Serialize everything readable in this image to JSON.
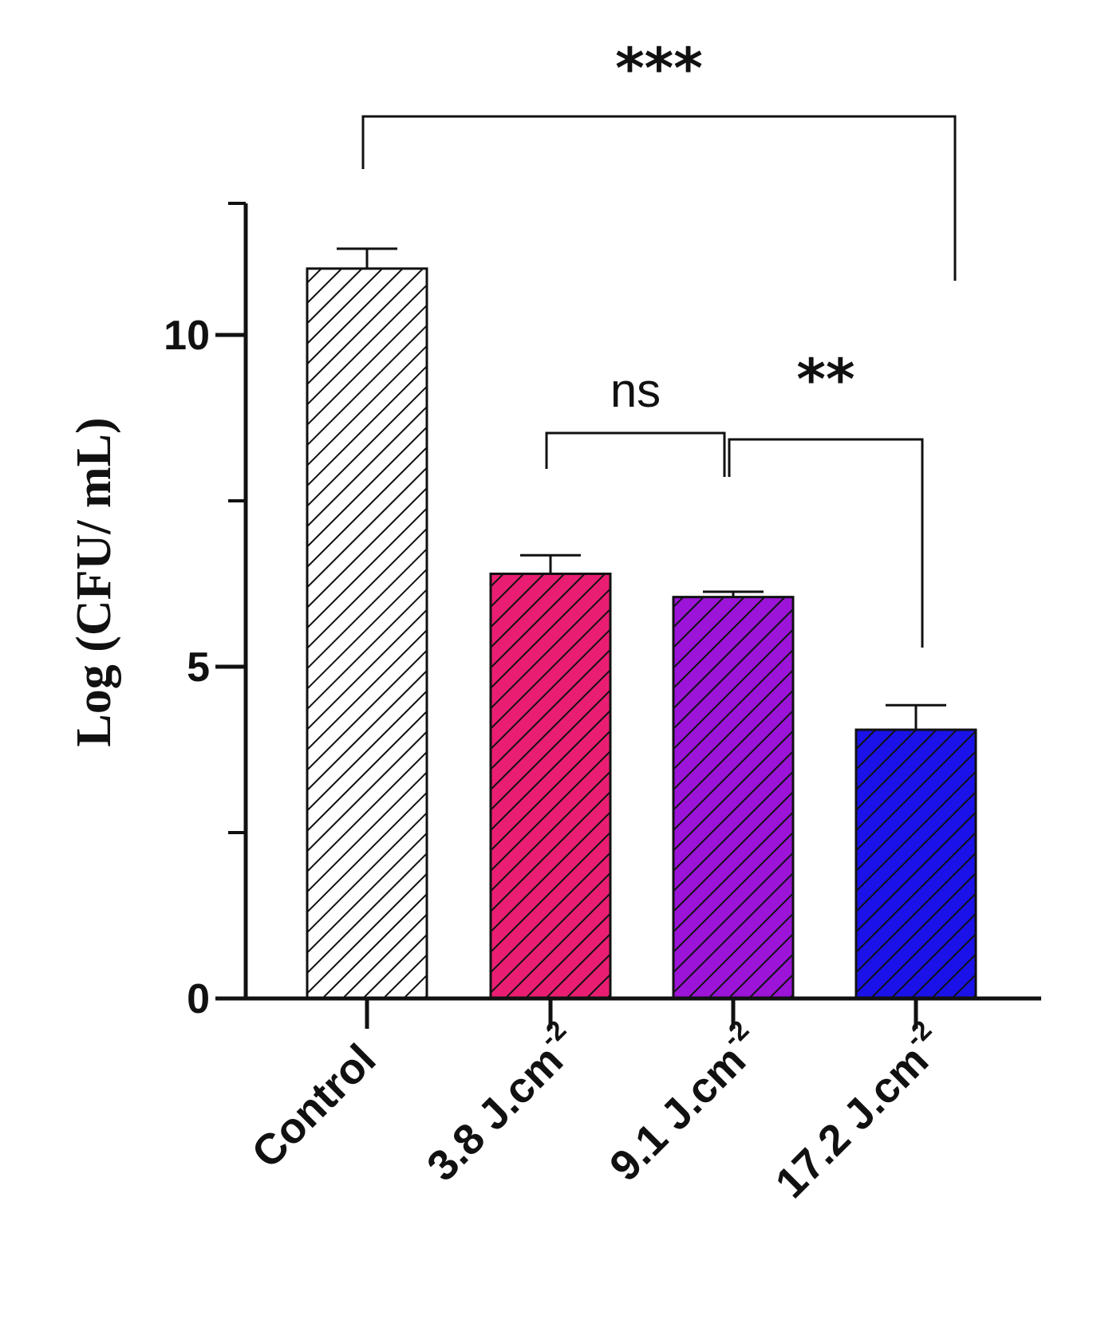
{
  "chart_data": {
    "type": "bar",
    "categories": [
      "Control",
      "3.8 J.cm",
      "9.1 J.cm",
      "17.2 J.cm"
    ],
    "category_superscripts": [
      "",
      "-2",
      "-2",
      "-2"
    ],
    "values": [
      11.0,
      6.4,
      6.05,
      4.05
    ],
    "errors": [
      0.3,
      0.28,
      0.08,
      0.37
    ],
    "colors": [
      "#ffffff",
      "#e91e72",
      "#9b14d8",
      "#1a12e8"
    ],
    "ylabel": "Log (CFU/ mL)",
    "xlabel": "",
    "title": "",
    "ylim": [
      0,
      12
    ],
    "yticks": [
      {
        "value": 0,
        "label": "0"
      },
      {
        "value": 5,
        "label": "5"
      },
      {
        "value": 10,
        "label": "10"
      }
    ],
    "minor_yticks": [
      2.5,
      7.5
    ],
    "grid": false,
    "significance": [
      {
        "from": 0,
        "to": 3,
        "label": "***"
      },
      {
        "from": 1,
        "to": 2,
        "label": "ns"
      },
      {
        "from": 2,
        "to": 3,
        "label": "**"
      }
    ]
  }
}
